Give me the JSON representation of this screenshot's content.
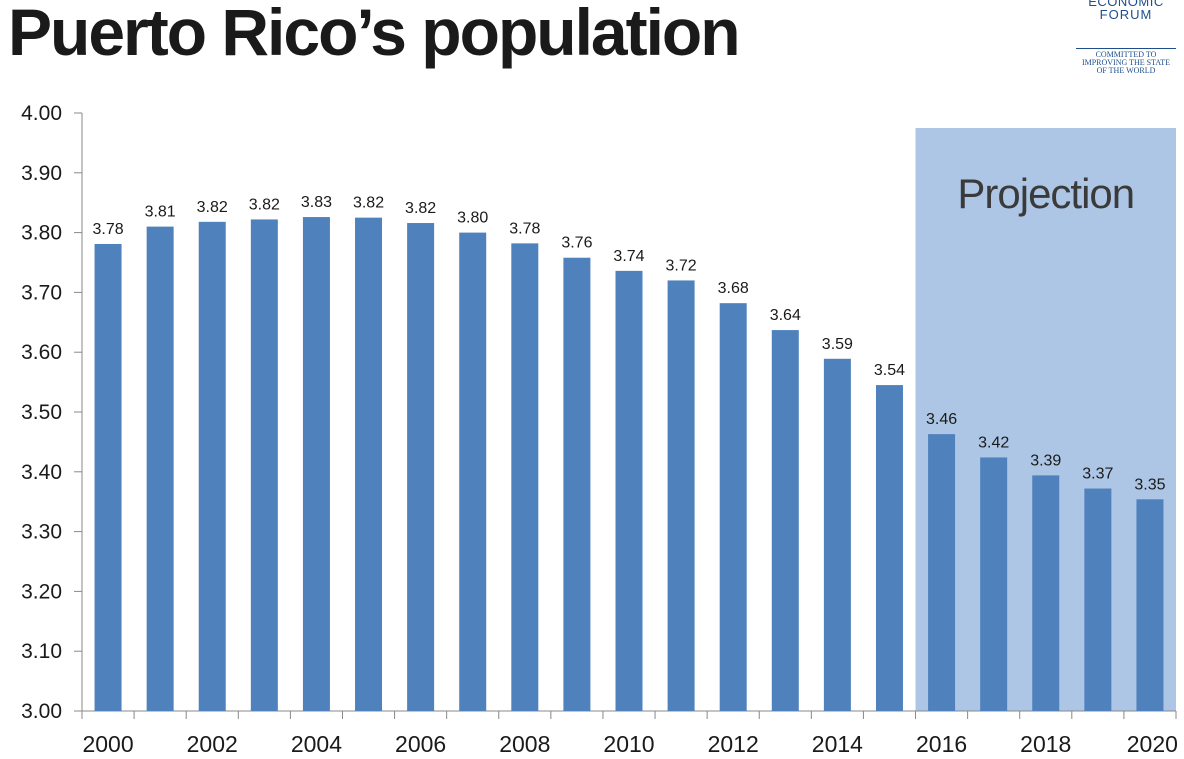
{
  "chart_data": {
    "type": "bar",
    "title": "Puerto Rico’s population",
    "xlabel": "",
    "ylabel": "",
    "ylim": [
      3.0,
      4.0
    ],
    "y_ticks": [
      "3.00",
      "3.10",
      "3.20",
      "3.30",
      "3.40",
      "3.50",
      "3.60",
      "3.70",
      "3.80",
      "3.90",
      "4.00"
    ],
    "categories": [
      "2000",
      "2001",
      "2002",
      "2003",
      "2004",
      "2005",
      "2006",
      "2007",
      "2008",
      "2009",
      "2010",
      "2011",
      "2012",
      "2013",
      "2014",
      "2015",
      "2016",
      "2017",
      "2018",
      "2019",
      "2020"
    ],
    "x_tick_labels": [
      "2000",
      "2002",
      "2004",
      "2006",
      "2008",
      "2010",
      "2012",
      "2014",
      "2016",
      "2018",
      "2020"
    ],
    "values": [
      3.781,
      3.81,
      3.818,
      3.822,
      3.826,
      3.825,
      3.816,
      3.8,
      3.782,
      3.758,
      3.736,
      3.72,
      3.682,
      3.637,
      3.589,
      3.545,
      3.463,
      3.424,
      3.394,
      3.372,
      3.354
    ],
    "data_labels": [
      "3.78",
      "3.81",
      "3.82",
      "3.82",
      "3.83",
      "3.82",
      "3.82",
      "3.80",
      "3.78",
      "3.76",
      "3.74",
      "3.72",
      "3.68",
      "3.64",
      "3.59",
      "3.54",
      "3.46",
      "3.42",
      "3.39",
      "3.37",
      "3.35"
    ],
    "projection": {
      "label": "Projection",
      "from": "2016",
      "to": "2020"
    },
    "colors": {
      "bar": "#4f81bd",
      "projection_band": "#adc6e5",
      "axis": "#888888"
    }
  },
  "logo": {
    "line1": "ECONOMIC",
    "line2": "FORUM",
    "tagline": [
      "COMMITTED TO",
      "IMPROVING THE STATE",
      "OF THE WORLD"
    ]
  }
}
